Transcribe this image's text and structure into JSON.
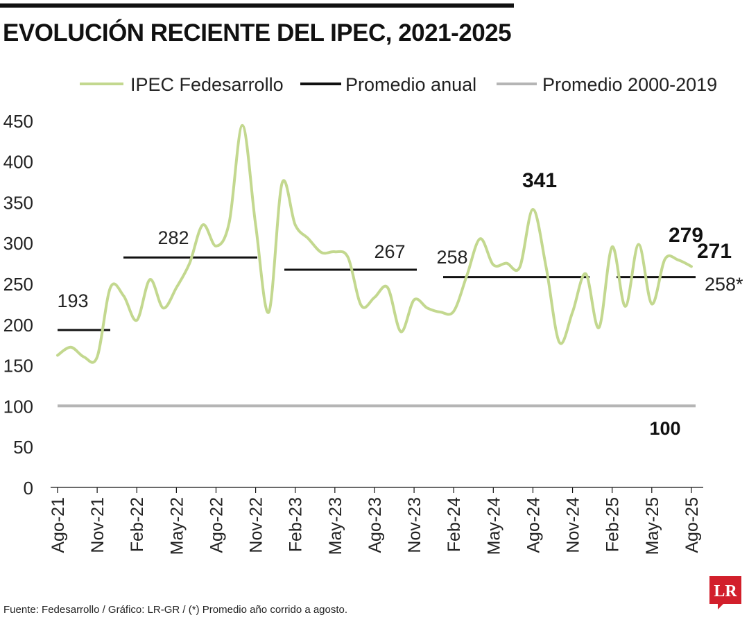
{
  "title": "EVOLUCIÓN RECIENTE DEL IPEC, 2021-2025",
  "footer": "Fuente: Fedesarrollo / Gráfico: LR-GR / (*) Promedio año corrido a agosto.",
  "logo": {
    "text": "LR",
    "color": "#d21f2b"
  },
  "colors": {
    "ipec": "#c3d88f",
    "annual": "#111111",
    "baseline": "#b5b5b5",
    "text": "#222222"
  },
  "chart_data": {
    "type": "line",
    "title": "EVOLUCIÓN RECIENTE DEL IPEC, 2021-2025",
    "xlabel": "",
    "ylabel": "",
    "ylim": [
      0,
      450
    ],
    "yticks": [
      0,
      50,
      100,
      150,
      200,
      250,
      300,
      350,
      400,
      450
    ],
    "xtick_labels": [
      "Ago-21",
      "Nov-21",
      "Feb-22",
      "May-22",
      "Ago-22",
      "Nov-22",
      "Feb-23",
      "May-23",
      "Ago-23",
      "Nov-23",
      "Feb-24",
      "May-24",
      "Ago-24",
      "Nov-24",
      "Feb-25",
      "May-25",
      "Ago-25"
    ],
    "grid": false,
    "legend": {
      "position": "top",
      "entries": [
        {
          "label": "IPEC Fedesarrollo",
          "color": "#c3d88f"
        },
        {
          "label": "Promedio anual",
          "color": "#111111"
        },
        {
          "label": "Promedio 2000-2019",
          "color": "#b5b5b5"
        }
      ]
    },
    "series": [
      {
        "name": "IPEC Fedesarrollo",
        "color": "#c3d88f",
        "x": [
          "Ago-21",
          "Sep-21",
          "Oct-21",
          "Nov-21",
          "Dic-21",
          "Ene-22",
          "Feb-22",
          "Mar-22",
          "Abr-22",
          "May-22",
          "Jun-22",
          "Jul-22",
          "Ago-22",
          "Sep-22",
          "Oct-22",
          "Nov-22",
          "Dic-22",
          "Ene-23",
          "Feb-23",
          "Mar-23",
          "Abr-23",
          "May-23",
          "Jun-23",
          "Jul-23",
          "Ago-23",
          "Sep-23",
          "Oct-23",
          "Nov-23",
          "Dic-23",
          "Ene-24",
          "Feb-24",
          "Mar-24",
          "Abr-24",
          "May-24",
          "Jun-24",
          "Jul-24",
          "Ago-24",
          "Sep-24",
          "Oct-24",
          "Nov-24",
          "Dic-24",
          "Ene-25",
          "Feb-25",
          "Mar-25",
          "Abr-25",
          "May-25",
          "Jun-25",
          "Jul-25",
          "Ago-25"
        ],
        "values": [
          162,
          172,
          160,
          160,
          245,
          235,
          205,
          255,
          220,
          245,
          275,
          322,
          296,
          325,
          444,
          322,
          215,
          373,
          322,
          305,
          288,
          289,
          282,
          223,
          233,
          245,
          191,
          230,
          220,
          215,
          216,
          260,
          305,
          273,
          275,
          270,
          341,
          270,
          178,
          215,
          262,
          196,
          295,
          222,
          298,
          225,
          280,
          279,
          271
        ]
      },
      {
        "name": "Promedio anual",
        "color": "#111111",
        "segments": [
          {
            "from": "Ago-21",
            "to": "Dic-21",
            "value": 193
          },
          {
            "from": "Ene-22",
            "to": "Dic-22",
            "value": 282
          },
          {
            "from": "Ene-23",
            "to": "Dic-23",
            "value": 267
          },
          {
            "from": "Ene-24",
            "to": "Dic-24",
            "value": 258
          },
          {
            "from": "Ene-25",
            "to": "Ago-25",
            "value": 258
          }
        ]
      },
      {
        "name": "Promedio 2000-2019",
        "color": "#b5b5b5",
        "value": 100
      }
    ],
    "annotations": [
      {
        "text": "193",
        "x": "Sep-21",
        "y": 193,
        "bold": false
      },
      {
        "text": "282",
        "x": "Jun-22",
        "y": 282,
        "bold": false
      },
      {
        "text": "267",
        "x": "Sep-23",
        "y": 267,
        "bold": false
      },
      {
        "text": "258",
        "x": "Feb-24",
        "y": 258,
        "bold": false
      },
      {
        "text": "341",
        "x": "Ago-24",
        "y": 341,
        "bold": true
      },
      {
        "text": "279",
        "x": "Jul-25",
        "y": 279,
        "bold": true
      },
      {
        "text": "271",
        "x": "Ago-25",
        "y": 271,
        "bold": true
      },
      {
        "text": "258*",
        "x": "Ago-25",
        "y": 258,
        "bold": false
      },
      {
        "text": "100",
        "x": "Jun-25",
        "y": 100,
        "bold": true
      }
    ]
  }
}
